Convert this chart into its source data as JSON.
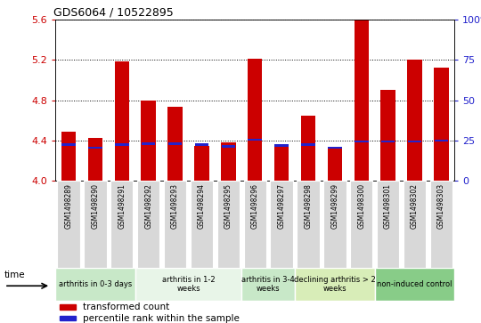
{
  "title": "GDS6064 / 10522895",
  "samples": [
    "GSM1498289",
    "GSM1498290",
    "GSM1498291",
    "GSM1498292",
    "GSM1498293",
    "GSM1498294",
    "GSM1498295",
    "GSM1498296",
    "GSM1498297",
    "GSM1498298",
    "GSM1498299",
    "GSM1498300",
    "GSM1498301",
    "GSM1498302",
    "GSM1498303"
  ],
  "red_values": [
    4.49,
    4.43,
    5.18,
    4.8,
    4.73,
    4.35,
    4.38,
    5.21,
    4.36,
    4.65,
    4.33,
    5.6,
    4.9,
    5.2,
    5.12
  ],
  "blue_values": [
    4.36,
    4.33,
    4.36,
    4.37,
    4.37,
    4.36,
    4.34,
    4.41,
    4.35,
    4.36,
    4.33,
    4.39,
    4.39,
    4.39,
    4.4
  ],
  "ymin": 4.0,
  "ymax": 5.6,
  "y_ticks": [
    4.0,
    4.4,
    4.8,
    5.2,
    5.6
  ],
  "y2_ticks": [
    0,
    25,
    50,
    75,
    100
  ],
  "groups": [
    {
      "label": "arthritis in 0-3 days",
      "indices": [
        0,
        1,
        2
      ],
      "color": "#c8e8c8"
    },
    {
      "label": "arthritis in 1-2\nweeks",
      "indices": [
        3,
        4,
        5,
        6
      ],
      "color": "#e8f5e8"
    },
    {
      "label": "arthritis in 3-4\nweeks",
      "indices": [
        7,
        8
      ],
      "color": "#c8e8c8"
    },
    {
      "label": "declining arthritis > 2\nweeks",
      "indices": [
        9,
        10,
        11
      ],
      "color": "#d8edb8"
    },
    {
      "label": "non-induced control",
      "indices": [
        12,
        13,
        14
      ],
      "color": "#88cc88"
    }
  ],
  "bar_color": "#cc0000",
  "blue_color": "#2222cc",
  "bg_color": "#ffffff",
  "sample_bg": "#d8d8d8",
  "ylabel_color": "#cc0000",
  "y2label_color": "#2222cc",
  "legend_red": "transformed count",
  "legend_blue": "percentile rank within the sample",
  "time_label": "time"
}
